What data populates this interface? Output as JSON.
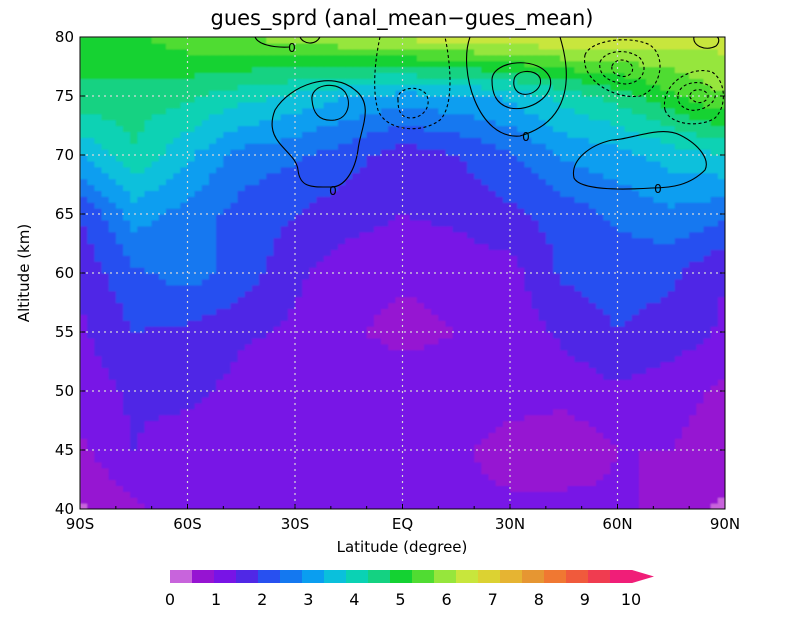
{
  "chart_data": {
    "type": "contour",
    "title": "gues_sprd (anal_mean−gues_mean)",
    "xlabel": "Latitude (degree)",
    "ylabel": "Altitude (km)",
    "xlim": [
      -90,
      90
    ],
    "ylim": [
      40,
      80
    ],
    "x_ticks": [
      {
        "value": -90,
        "label": "90S"
      },
      {
        "value": -60,
        "label": "60S"
      },
      {
        "value": -30,
        "label": "30S"
      },
      {
        "value": 0,
        "label": "EQ"
      },
      {
        "value": 30,
        "label": "30N"
      },
      {
        "value": 60,
        "label": "60N"
      },
      {
        "value": 90,
        "label": "90N"
      }
    ],
    "y_ticks": [
      {
        "value": 40,
        "label": "40"
      },
      {
        "value": 45,
        "label": "45"
      },
      {
        "value": 50,
        "label": "50"
      },
      {
        "value": 55,
        "label": "55"
      },
      {
        "value": 60,
        "label": "60"
      },
      {
        "value": 65,
        "label": "65"
      },
      {
        "value": 70,
        "label": "70"
      },
      {
        "value": 75,
        "label": "75"
      },
      {
        "value": 80,
        "label": "80"
      }
    ],
    "grid": true,
    "filled_field": {
      "name": "gues_sprd",
      "levels": [
        0,
        0.5,
        1,
        1.5,
        2,
        2.5,
        3,
        3.5,
        4,
        4.5,
        5,
        5.5,
        6,
        6.5,
        7,
        7.5,
        8,
        8.5,
        9,
        9.5,
        10
      ],
      "level_colors": [
        "#c864dc",
        "#9614d2",
        "#7814e6",
        "#5028e6",
        "#2850f0",
        "#1478f0",
        "#0a9ef0",
        "#0ac0dc",
        "#0ad2b4",
        "#14d282",
        "#14d232",
        "#50dc32",
        "#96e63c",
        "#c8e63c",
        "#dcd232",
        "#e6b432",
        "#e69632",
        "#f07832",
        "#f05a3c",
        "#f03c50",
        "#f01e78"
      ],
      "latitude": [
        -90,
        -75,
        -60,
        -45,
        -30,
        -15,
        0,
        15,
        30,
        45,
        60,
        75,
        90
      ],
      "altitude": [
        40,
        45,
        50,
        55,
        60,
        65,
        70,
        75,
        80
      ],
      "values": [
        [
          0.4,
          0.9,
          1.3,
          1.1,
          1.2,
          1.3,
          1.2,
          1.1,
          1.1,
          1.2,
          1.1,
          0.8,
          0.4
        ],
        [
          0.9,
          1.5,
          1.1,
          1.0,
          1.2,
          1.1,
          1.0,
          1.1,
          0.8,
          0.6,
          1.0,
          1.0,
          0.7
        ],
        [
          1.2,
          1.6,
          1.7,
          1.3,
          1.0,
          1.3,
          1.4,
          1.3,
          1.2,
          1.2,
          1.4,
          1.2,
          0.9
        ],
        [
          1.4,
          2.0,
          1.9,
          1.6,
          1.4,
          1.1,
          0.8,
          1.0,
          1.2,
          1.6,
          2.0,
          1.8,
          1.4
        ],
        [
          1.6,
          2.4,
          2.7,
          2.3,
          1.6,
          1.2,
          1.1,
          1.2,
          1.3,
          2.1,
          2.2,
          2.1,
          1.5
        ],
        [
          2.0,
          3.2,
          2.8,
          2.3,
          2.0,
          1.7,
          1.5,
          1.6,
          1.9,
          2.2,
          2.6,
          2.9,
          2.6
        ],
        [
          3.5,
          4.4,
          3.6,
          2.8,
          2.6,
          2.2,
          1.7,
          2.0,
          2.4,
          3.1,
          3.3,
          3.7,
          4.0
        ],
        [
          4.9,
          4.8,
          4.6,
          4.2,
          3.9,
          3.5,
          3.3,
          3.4,
          3.6,
          4.2,
          4.7,
          5.4,
          6.0
        ],
        [
          5.2,
          5.4,
          5.8,
          6.0,
          6.2,
          6.5,
          6.6,
          6.8,
          6.9,
          7.0,
          6.9,
          6.7,
          6.7
        ]
      ]
    },
    "line_contours": {
      "field": "anal_mean−gues_mean",
      "labeled_levels": [
        "0",
        "0",
        "0",
        "0"
      ]
    },
    "colorbar": {
      "orientation": "horizontal",
      "placement": "bottom",
      "tick_labels": [
        "0",
        "1",
        "2",
        "3",
        "4",
        "5",
        "6",
        "7",
        "8",
        "9",
        "10"
      ],
      "extend": "max"
    }
  }
}
